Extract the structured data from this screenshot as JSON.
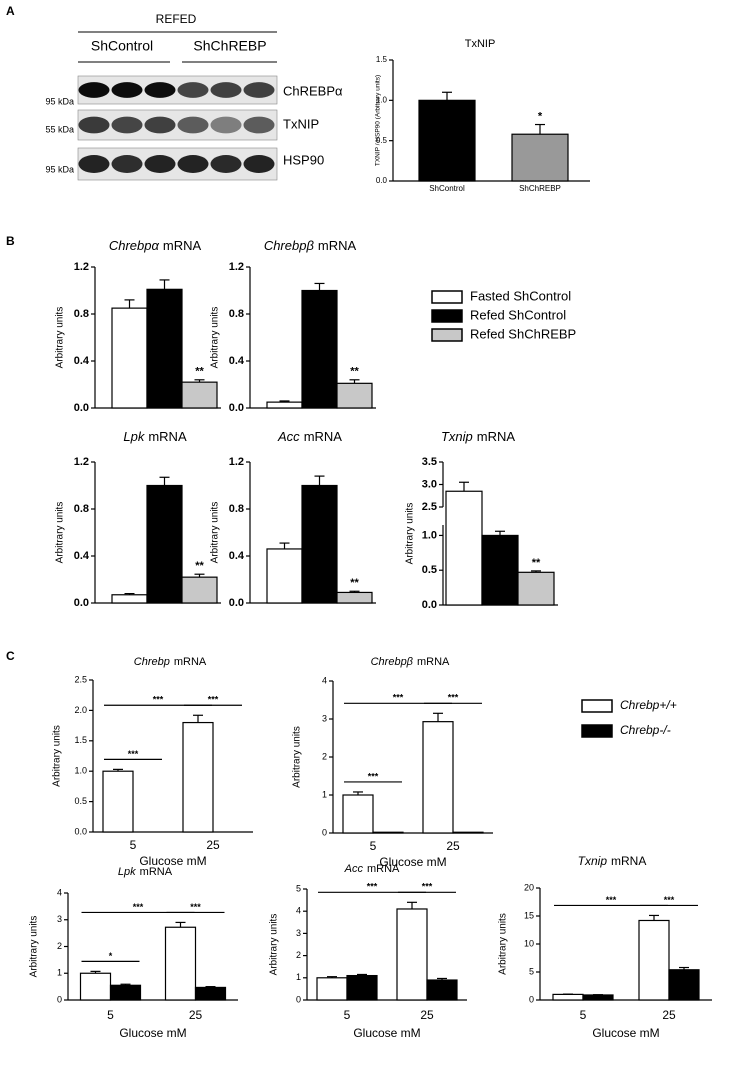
{
  "panel_labels": [
    "A",
    "B",
    "C"
  ],
  "blot": {
    "header": "REFED",
    "groups": [
      "ShControl",
      "ShChREBP"
    ],
    "rows": [
      {
        "protein": "ChREBPα",
        "marker": "95 kDa"
      },
      {
        "protein": "TxNIP",
        "marker": "55 kDa"
      },
      {
        "protein": "HSP90",
        "marker": "95 kDa"
      }
    ]
  },
  "legends": [
    {
      "entries": [
        {
          "name": "Fasted ShControl",
          "color": "#ffffff"
        },
        {
          "name": "Refed  ShControl",
          "color": "#000000"
        },
        {
          "name": "Refed  ShChREBP",
          "color": "#c8c8c8"
        }
      ]
    },
    {
      "entries": [
        {
          "name": "Chrebp+/+",
          "color": "#ffffff"
        },
        {
          "name": "Chrebp-/-",
          "color": "#000000"
        }
      ]
    }
  ],
  "chart_data": [
    {
      "type": "bar",
      "title": "TxNIP",
      "ylabel": "TXNIP / HSP90 (Arbitrary units)",
      "categories": [
        "ShControl",
        "ShChREBP"
      ],
      "values": [
        1.0,
        0.58
      ],
      "errors": [
        0.1,
        0.12
      ],
      "colors": [
        "#000000",
        "#999999"
      ],
      "ylim": [
        0,
        1.5
      ],
      "yticks": [
        {
          "value": 0,
          "label": "0.0"
        },
        0.5,
        {
          "value": 1,
          "label": "1.0"
        },
        1.5
      ],
      "annotations": [
        {
          "index": 1,
          "text": "*"
        }
      ]
    },
    {
      "type": "bar",
      "gene": "Chrebpα",
      "title": "mRNA",
      "ylabel": "Arbitrary units",
      "values": [
        0.85,
        1.01,
        0.22
      ],
      "errors": [
        0.07,
        0.08,
        0.02
      ],
      "colors": [
        "#ffffff",
        "#000000",
        "#c8c8c8"
      ],
      "ylim": [
        0,
        1.2
      ],
      "yticks": [
        {
          "value": 0,
          "label": "0.0"
        },
        0.4,
        0.8,
        1.2
      ],
      "annotations": [
        {
          "index": 2,
          "text": "**"
        }
      ]
    },
    {
      "type": "bar",
      "gene": "Chrebpβ",
      "title": "mRNA",
      "ylabel": "Arbitrary units",
      "values": [
        0.05,
        1.0,
        0.21
      ],
      "errors": [
        0.01,
        0.06,
        0.03
      ],
      "colors": [
        "#ffffff",
        "#000000",
        "#c8c8c8"
      ],
      "ylim": [
        0,
        1.2
      ],
      "yticks": [
        {
          "value": 0,
          "label": "0.0"
        },
        0.4,
        0.8,
        1.2
      ],
      "annotations": [
        {
          "index": 2,
          "text": "**"
        }
      ]
    },
    {
      "type": "bar",
      "gene": "Lpk",
      "title": "mRNA",
      "ylabel": "Arbitrary units",
      "values": [
        0.07,
        1.0,
        0.22
      ],
      "errors": [
        0.01,
        0.07,
        0.025
      ],
      "colors": [
        "#ffffff",
        "#000000",
        "#c8c8c8"
      ],
      "ylim": [
        0,
        1.2
      ],
      "yticks": [
        {
          "value": 0,
          "label": "0.0"
        },
        0.4,
        0.8,
        1.2
      ],
      "annotations": [
        {
          "index": 2,
          "text": "**"
        }
      ]
    },
    {
      "type": "bar",
      "gene": "Acc",
      "title": "mRNA",
      "ylabel": "Arbitrary units",
      "values": [
        0.46,
        1.0,
        0.09
      ],
      "errors": [
        0.05,
        0.08,
        0.01
      ],
      "colors": [
        "#ffffff",
        "#000000",
        "#c8c8c8"
      ],
      "ylim": [
        0,
        1.2
      ],
      "yticks": [
        {
          "value": 0,
          "label": "0.0"
        },
        0.4,
        0.8,
        1.2
      ],
      "annotations": [
        {
          "index": 2,
          "text": "**"
        }
      ]
    },
    {
      "type": "bar",
      "gene": "Txnip",
      "title": "mRNA",
      "ylabel": "Arbitrary units",
      "values": [
        2.85,
        1.0,
        0.47
      ],
      "errors": [
        0.2,
        0.06,
        0.02
      ],
      "colors": [
        "#ffffff",
        "#000000",
        "#c8c8c8"
      ],
      "ylim": [
        0,
        3.5
      ],
      "ybreak": [
        1.15,
        2.5
      ],
      "yticks": [
        {
          "value": 0,
          "label": "0.0"
        },
        0.5,
        {
          "value": 1,
          "label": "1.0"
        },
        2.5,
        {
          "value": 3,
          "label": "3.0"
        },
        3.5
      ],
      "annotations": [
        {
          "index": 2,
          "text": "**"
        }
      ]
    },
    {
      "type": "bar",
      "gene": "Chrebp",
      "title": "mRNA",
      "ylabel": "Arbitrary units",
      "xlabel": "Glucose mM",
      "categories": [
        "5",
        "25"
      ],
      "series": [
        {
          "color": "#ffffff",
          "values": [
            1.0,
            1.8
          ],
          "errors": [
            0.03,
            0.12
          ]
        },
        {
          "color": "#000000",
          "values": [
            0,
            0
          ]
        }
      ],
      "ylim": [
        0,
        2.5
      ],
      "yticks": [
        {
          "value": 0,
          "label": "0.0"
        },
        0.5,
        {
          "value": 1,
          "label": "1.0"
        },
        1.5,
        {
          "value": 2,
          "label": "2.0"
        },
        2.5
      ],
      "comparisons": [
        {
          "bars": [
            [
              0,
              0
            ],
            [
              1,
              0
            ]
          ],
          "text": "***"
        },
        {
          "bars": [
            [
              0,
              0
            ],
            [
              0,
              1
            ]
          ],
          "text": "***"
        },
        {
          "bars": [
            [
              0,
              1
            ],
            [
              1,
              1
            ]
          ],
          "text": "***"
        }
      ]
    },
    {
      "type": "bar",
      "gene": "Chrebpβ",
      "title": "mRNA",
      "ylabel": "Arbitrary units",
      "xlabel": "Glucose mM",
      "categories": [
        "5",
        "25"
      ],
      "series": [
        {
          "color": "#ffffff",
          "values": [
            1.0,
            2.93
          ],
          "errors": [
            0.08,
            0.22
          ]
        },
        {
          "color": "#000000",
          "values": [
            0.02,
            0.02
          ]
        }
      ],
      "ylim": [
        0,
        4
      ],
      "yticks": [
        0,
        1,
        2,
        3,
        4
      ],
      "comparisons": [
        {
          "bars": [
            [
              0,
              0
            ],
            [
              1,
              0
            ]
          ],
          "text": "***"
        },
        {
          "bars": [
            [
              0,
              0
            ],
            [
              0,
              1
            ]
          ],
          "text": "***"
        },
        {
          "bars": [
            [
              0,
              1
            ],
            [
              1,
              1
            ]
          ],
          "text": "***"
        }
      ]
    },
    {
      "type": "bar",
      "gene": "Lpk",
      "title": "mRNA",
      "ylabel": "Arbitrary units",
      "xlabel": "Glucose mM",
      "categories": [
        "5",
        "25"
      ],
      "series": [
        {
          "color": "#ffffff",
          "values": [
            1.0,
            2.72
          ],
          "errors": [
            0.07,
            0.18
          ]
        },
        {
          "color": "#000000",
          "values": [
            0.55,
            0.47
          ],
          "errors": [
            0.04,
            0.03
          ]
        }
      ],
      "ylim": [
        0,
        4
      ],
      "yticks": [
        0,
        1,
        2,
        3,
        4
      ],
      "comparisons": [
        {
          "bars": [
            [
              0,
              0
            ],
            [
              1,
              0
            ]
          ],
          "text": "*"
        },
        {
          "bars": [
            [
              0,
              0
            ],
            [
              0,
              1
            ]
          ],
          "text": "***"
        },
        {
          "bars": [
            [
              0,
              1
            ],
            [
              1,
              1
            ]
          ],
          "text": "***"
        }
      ]
    },
    {
      "type": "bar",
      "gene": "Acc",
      "title": "mRNA",
      "ylabel": "Arbitrary units",
      "xlabel": "Glucose mM",
      "categories": [
        "5",
        "25"
      ],
      "series": [
        {
          "color": "#ffffff",
          "values": [
            1.0,
            4.1
          ],
          "errors": [
            0.05,
            0.3
          ]
        },
        {
          "color": "#000000",
          "values": [
            1.1,
            0.9
          ],
          "errors": [
            0.05,
            0.07
          ]
        }
      ],
      "ylim": [
        0,
        5
      ],
      "yticks": [
        0,
        1,
        2,
        3,
        4,
        5
      ],
      "comparisons": [
        {
          "bars": [
            [
              0,
              0
            ],
            [
              0,
              1
            ]
          ],
          "text": "***"
        },
        {
          "bars": [
            [
              0,
              1
            ],
            [
              1,
              1
            ]
          ],
          "text": "***"
        }
      ]
    },
    {
      "type": "bar",
      "gene": "Txnip",
      "title": "mRNA",
      "ylabel": "Arbitrary units",
      "xlabel": "Glucose mM",
      "categories": [
        "5",
        "25"
      ],
      "series": [
        {
          "color": "#ffffff",
          "values": [
            1.0,
            14.2
          ],
          "errors": [
            0.05,
            0.9
          ]
        },
        {
          "color": "#000000",
          "values": [
            0.9,
            5.4
          ],
          "errors": [
            0.05,
            0.4
          ]
        }
      ],
      "ylim": [
        0,
        20
      ],
      "yticks": [
        0,
        5,
        10,
        15,
        20
      ],
      "comparisons": [
        {
          "bars": [
            [
              0,
              0
            ],
            [
              0,
              1
            ]
          ],
          "text": "***"
        },
        {
          "bars": [
            [
              0,
              1
            ],
            [
              1,
              1
            ]
          ],
          "text": "***"
        }
      ]
    }
  ]
}
